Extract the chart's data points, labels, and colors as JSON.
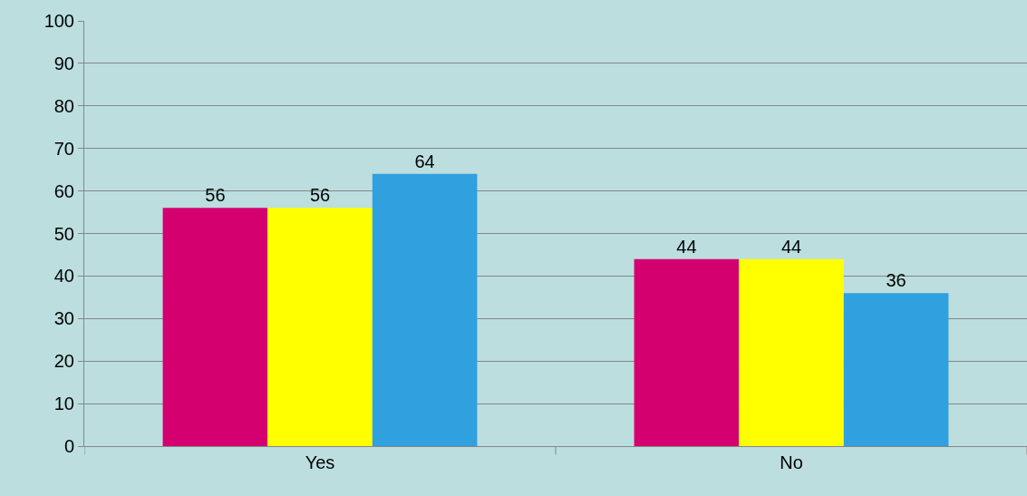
{
  "chart_data": {
    "type": "bar",
    "categories": [
      "Yes",
      "No"
    ],
    "series": [
      {
        "color": "#d4006f",
        "values": [
          56,
          44
        ]
      },
      {
        "color": "#ffff00",
        "values": [
          56,
          44
        ]
      },
      {
        "color": "#31a0df",
        "values": [
          64,
          36
        ]
      }
    ],
    "ylim": [
      0,
      100
    ],
    "yticks": [
      0,
      10,
      20,
      30,
      40,
      50,
      60,
      70,
      80,
      90,
      100
    ],
    "grid": "y",
    "data_labels": true
  }
}
